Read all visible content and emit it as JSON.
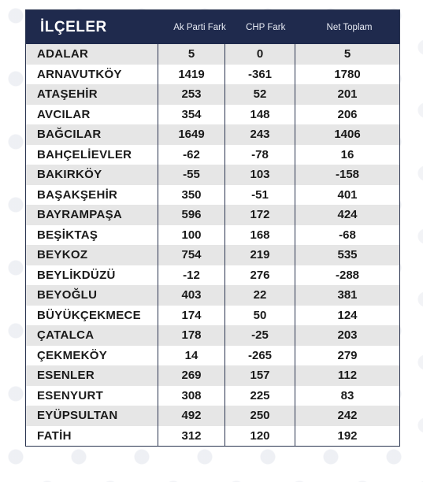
{
  "header": {
    "title": "İLÇELER",
    "col_ak": "Ak Parti Fark",
    "col_chp": "CHP Fark",
    "col_net": "Net Toplam"
  },
  "rows": [
    {
      "name": "ADALAR",
      "ak": "5",
      "chp": "0",
      "net": "5"
    },
    {
      "name": "ARNAVUTKÖY",
      "ak": "1419",
      "chp": "-361",
      "net": "1780"
    },
    {
      "name": "ATAŞEHİR",
      "ak": "253",
      "chp": "52",
      "net": "201"
    },
    {
      "name": "AVCILAR",
      "ak": "354",
      "chp": "148",
      "net": "206"
    },
    {
      "name": "BAĞCILAR",
      "ak": "1649",
      "chp": "243",
      "net": "1406"
    },
    {
      "name": "BAHÇELİEVLER",
      "ak": "-62",
      "chp": "-78",
      "net": "16"
    },
    {
      "name": "BAKIRKÖY",
      "ak": "-55",
      "chp": "103",
      "net": "-158"
    },
    {
      "name": "BAŞAKŞEHİR",
      "ak": "350",
      "chp": "-51",
      "net": "401"
    },
    {
      "name": "BAYRAMPAŞA",
      "ak": "596",
      "chp": "172",
      "net": "424"
    },
    {
      "name": "BEŞİKTAŞ",
      "ak": "100",
      "chp": "168",
      "net": "-68"
    },
    {
      "name": "BEYKOZ",
      "ak": "754",
      "chp": "219",
      "net": "535"
    },
    {
      "name": "BEYLİKDÜZÜ",
      "ak": "-12",
      "chp": "276",
      "net": "-288"
    },
    {
      "name": "BEYOĞLU",
      "ak": "403",
      "chp": "22",
      "net": "381"
    },
    {
      "name": "BÜYÜKÇEKMECE",
      "ak": "174",
      "chp": "50",
      "net": "124"
    },
    {
      "name": "ÇATALCA",
      "ak": "178",
      "chp": "-25",
      "net": "203"
    },
    {
      "name": "ÇEKMEKÖY",
      "ak": "14",
      "chp": "-265",
      "net": "279"
    },
    {
      "name": "ESENLER",
      "ak": "269",
      "chp": "157",
      "net": "112"
    },
    {
      "name": "ESENYURT",
      "ak": "308",
      "chp": "225",
      "net": "83"
    },
    {
      "name": "EYÜPSULTAN",
      "ak": "492",
      "chp": "250",
      "net": "242"
    },
    {
      "name": "FATİH",
      "ak": "312",
      "chp": "120",
      "net": "192"
    }
  ]
}
